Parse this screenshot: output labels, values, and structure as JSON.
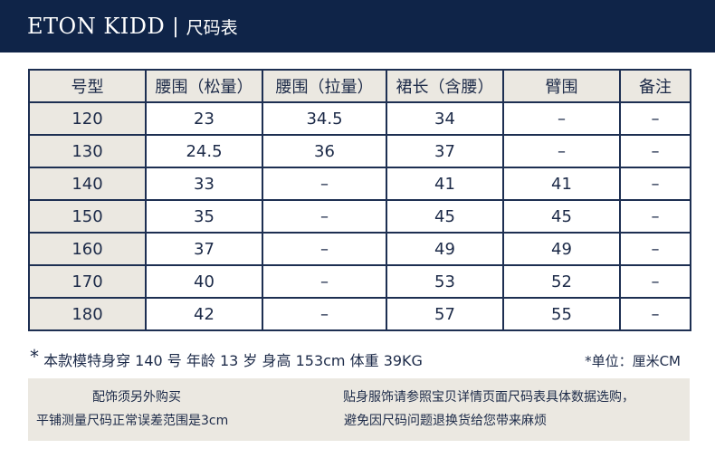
{
  "header": {
    "brand": "ETON KIDD",
    "separator": "|",
    "subtitle": "尺码表"
  },
  "table": {
    "headers": [
      "号型",
      "腰围（松量）",
      "腰围（拉量）",
      "裙长（含腰）",
      "臂围",
      "备注"
    ],
    "rows": [
      [
        "120",
        "23",
        "34.5",
        "34",
        "–",
        "–"
      ],
      [
        "130",
        "24.5",
        "36",
        "37",
        "–",
        "–"
      ],
      [
        "140",
        "33",
        "–",
        "41",
        "41",
        "–"
      ],
      [
        "150",
        "35",
        "–",
        "45",
        "45",
        "–"
      ],
      [
        "160",
        "37",
        "–",
        "49",
        "49",
        "–"
      ],
      [
        "170",
        "40",
        "–",
        "53",
        "52",
        "–"
      ],
      [
        "180",
        "42",
        "–",
        "57",
        "55",
        "–"
      ]
    ]
  },
  "model_note": {
    "asterisk": "*",
    "text": "本款模特身穿 140 号 年龄 13 岁 身高 153cm 体重 39KG"
  },
  "unit_note": "*单位：厘米CM",
  "notes": {
    "line1": "配饰须另外购买",
    "line2": "平铺测量尺码正常误差范围是3cm",
    "line3": "贴身服饰请参照宝贝详情页面尺码表具体数据选购，",
    "line4": "避免因尺码问题退换货给您带来麻烦"
  }
}
